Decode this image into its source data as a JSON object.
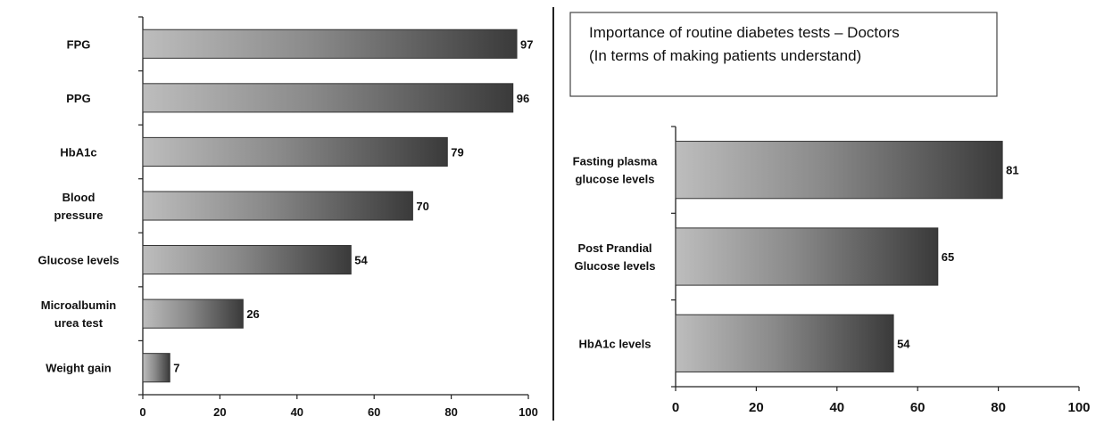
{
  "chart_data": [
    {
      "type": "bar",
      "orientation": "horizontal",
      "title": "",
      "categories": [
        [
          "FPG"
        ],
        [
          "PPG"
        ],
        [
          "HbA1c"
        ],
        [
          "Blood",
          "pressure"
        ],
        [
          "Glucose levels"
        ],
        [
          "Microalbumin",
          "urea test"
        ],
        [
          "Weight gain"
        ]
      ],
      "values": [
        97,
        96,
        79,
        70,
        54,
        26,
        7
      ],
      "xlim": [
        0,
        100
      ],
      "xticks": [
        "0",
        "20",
        "40",
        "60",
        "80",
        "100"
      ],
      "grid": false,
      "legend": "none"
    },
    {
      "type": "bar",
      "orientation": "horizontal",
      "title_lines": [
        "Importance of routine diabetes tests – Doctors",
        "(In terms of making patients understand)"
      ],
      "categories": [
        [
          "Fasting plasma",
          "glucose levels"
        ],
        [
          "Post Prandial",
          "Glucose levels"
        ],
        [
          "HbA1c levels"
        ]
      ],
      "values": [
        81,
        65,
        54
      ],
      "xlim": [
        0,
        100
      ],
      "xticks": [
        "0",
        "20",
        "40",
        "60",
        "80",
        "100"
      ],
      "grid": false,
      "legend": "none"
    }
  ],
  "colors": {
    "bar_light": "#bdbdbd",
    "bar_mid": "#8a8a8a",
    "bar_dark": "#3a3a3a",
    "axis": "#222222",
    "divider": "#222222"
  }
}
